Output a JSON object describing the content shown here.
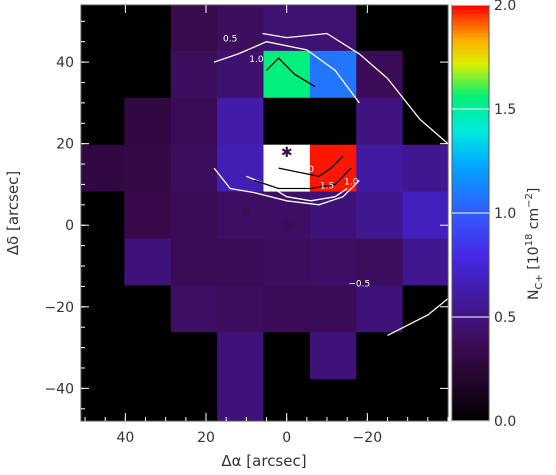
{
  "chart_data": {
    "type": "heatmap",
    "title": "",
    "xlabel": "Δα [arcsec]",
    "ylabel": "Δδ [arcsec]",
    "xlim": [
      51,
      -40
    ],
    "ylim": [
      -48,
      54
    ],
    "x_reversed": true,
    "x_ticks": [
      40,
      20,
      0,
      -20
    ],
    "x_tick_labels": [
      "40",
      "20",
      "0",
      "−20"
    ],
    "y_ticks": [
      -40,
      -20,
      0,
      20,
      40
    ],
    "y_tick_labels": [
      "−40",
      "−20",
      "0",
      "20",
      "40"
    ],
    "pixel_size_arcsec": 11.5,
    "grid_x_centers": [
      46,
      34.5,
      23,
      11.5,
      0,
      -11.5,
      -23,
      -34.5
    ],
    "grid_y_centers": [
      48.5,
      37,
      25.5,
      14,
      2.5,
      -9,
      -20.5,
      -32,
      -43.5
    ],
    "values_note_units": "N_C+ [10^18 cm^-2]",
    "values": [
      [
        0.0,
        0.0,
        0.35,
        0.4,
        0.46,
        0.46,
        0.0,
        0.0
      ],
      [
        0.0,
        0.0,
        0.4,
        0.45,
        1.55,
        1.08,
        0.38,
        0.0
      ],
      [
        0.0,
        0.3,
        0.38,
        0.62,
        0.0,
        0.0,
        0.5,
        0.0
      ],
      [
        0.3,
        0.32,
        0.4,
        0.65,
        2.0,
        1.98,
        0.6,
        0.55
      ],
      [
        0.0,
        0.34,
        0.38,
        0.42,
        0.42,
        0.48,
        0.55,
        0.68
      ],
      [
        0.0,
        0.48,
        0.38,
        0.38,
        0.4,
        0.42,
        0.4,
        0.55
      ],
      [
        0.0,
        0.0,
        0.42,
        0.4,
        0.38,
        0.38,
        0.48,
        0.0
      ],
      [
        0.0,
        0.0,
        0.0,
        0.48,
        0.0,
        0.48,
        0.0,
        0.0
      ],
      [
        0.0,
        0.0,
        0.0,
        0.48,
        0.0,
        0.0,
        0.0,
        0.0
      ]
    ],
    "colorbar": {
      "label_main": "N",
      "label_sub": "C+",
      "label_rest": " [10",
      "label_exp1": "18",
      "label_unit": " cm",
      "label_exp2": "−2",
      "label_end": "]",
      "range": [
        0.0,
        2.0
      ],
      "ticks": [
        0.0,
        0.5,
        1.0,
        1.5,
        2.0
      ],
      "tick_labels": [
        "0.0",
        "0.5",
        "1.0",
        "1.5",
        "2.0"
      ]
    },
    "contours": [
      {
        "level": "0.5",
        "color": "#ffffff",
        "points": [
          [
            6,
            47
          ],
          [
            0,
            46
          ],
          [
            -10,
            47
          ],
          [
            -18,
            42
          ],
          [
            -25,
            36
          ],
          [
            -33,
            26
          ],
          [
            -40,
            20
          ],
          [
            -48,
            17
          ],
          [
            -52,
            13
          ],
          [
            -55,
            8
          ],
          [
            -58,
            4
          ],
          [
            -60,
            0
          ],
          [
            -58,
            -4
          ],
          [
            -52,
            -9
          ],
          [
            -45,
            -14
          ],
          [
            -40,
            -18
          ],
          [
            -35,
            -22
          ],
          [
            -25,
            -27
          ]
        ]
      },
      {
        "level": "1.0",
        "color": "#ffffff",
        "points": [
          [
            18,
            40
          ],
          [
            12,
            42
          ],
          [
            5,
            45
          ],
          [
            -5,
            43
          ],
          [
            -12,
            38
          ],
          [
            -15,
            34
          ],
          [
            -18,
            30
          ]
        ]
      },
      {
        "level": "1.5",
        "color": "#ffffff",
        "points": [
          [
            10,
            12
          ],
          [
            5,
            10
          ],
          [
            0,
            7
          ],
          [
            -6,
            6
          ],
          [
            -12,
            7
          ],
          [
            -15,
            9
          ]
        ]
      },
      {
        "level": "1.0",
        "color": "#ffffff",
        "points": [
          [
            18,
            14
          ],
          [
            14,
            9
          ],
          [
            8,
            8
          ],
          [
            0,
            6
          ],
          [
            -8,
            5
          ],
          [
            -14,
            7
          ],
          [
            -18,
            11
          ]
        ]
      },
      {
        "level": "1.0",
        "color": "#000000",
        "points": [
          [
            5,
            38
          ],
          [
            2,
            41
          ],
          [
            -2,
            37
          ],
          [
            -7,
            34
          ]
        ]
      },
      {
        "level": "2.0",
        "color": "#000000",
        "points": [
          [
            2,
            14
          ],
          [
            -3,
            13
          ],
          [
            -8,
            12
          ],
          [
            -11,
            14
          ],
          [
            -14,
            17
          ]
        ]
      },
      {
        "level": "1.5",
        "color": "#000000",
        "points": [
          [
            8,
            11
          ],
          [
            2,
            9
          ],
          [
            -6,
            9
          ],
          [
            -12,
            10
          ],
          [
            -16,
            14
          ]
        ]
      }
    ],
    "contour_labels": [
      {
        "text": "0.5",
        "x": 14,
        "y": 45
      },
      {
        "text": "1.0",
        "x": 7.5,
        "y": 40
      },
      {
        "text": "2.0",
        "x": -5,
        "y": 13
      },
      {
        "text": "1.5",
        "x": -10,
        "y": 9
      },
      {
        "text": "1.0",
        "x": -16,
        "y": 10
      },
      {
        "text": "−0.5",
        "x": -18,
        "y": -15
      }
    ],
    "markers": [
      {
        "symbol": "✱",
        "x": 0,
        "y": 18,
        "color": "#3a0f4a"
      },
      {
        "symbol": "✱",
        "x": 10,
        "y": 3,
        "color": "#3a0f4a"
      },
      {
        "symbol": "✱",
        "x": 0,
        "y": 0,
        "color": "#3a0f4a"
      }
    ]
  }
}
